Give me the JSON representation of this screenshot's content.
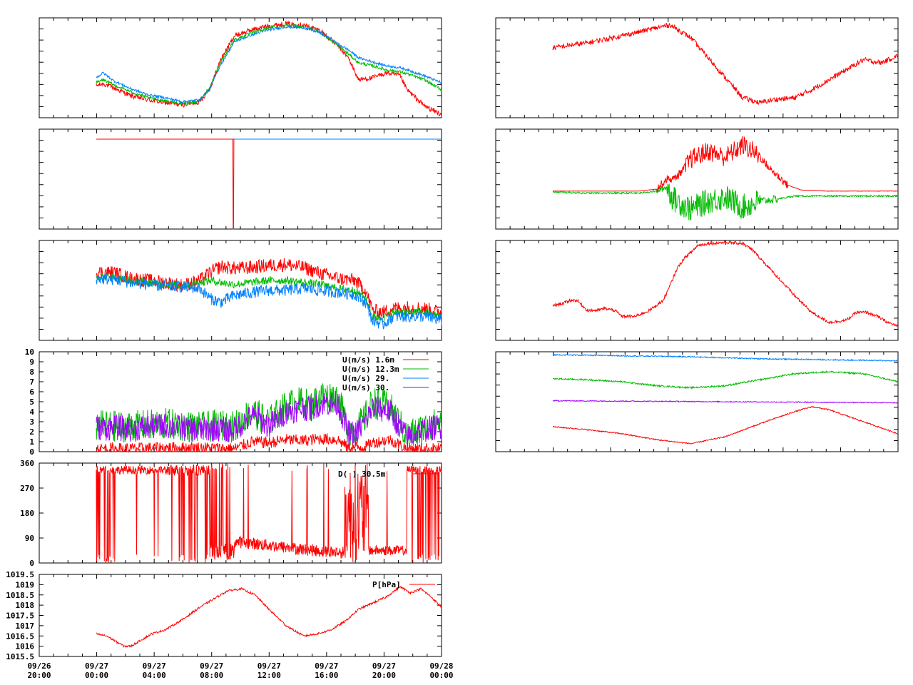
{
  "chart_data": [
    {
      "id": "left1",
      "type": "line",
      "series": [
        {
          "color": "#ff0000",
          "x": [
            0,
            0.02,
            0.05,
            0.1,
            0.15,
            0.2,
            0.25,
            0.3,
            0.33,
            0.36,
            0.4,
            0.45,
            0.5,
            0.55,
            0.6,
            0.65,
            0.7,
            0.73,
            0.76,
            0.8,
            0.84,
            0.88,
            0.9,
            0.95,
            1.0
          ],
          "y": [
            0.32,
            0.34,
            0.3,
            0.22,
            0.18,
            0.15,
            0.13,
            0.16,
            0.3,
            0.58,
            0.82,
            0.88,
            0.92,
            0.94,
            0.93,
            0.87,
            0.72,
            0.6,
            0.38,
            0.4,
            0.45,
            0.42,
            0.28,
            0.12,
            0.03
          ],
          "noise": 0.025
        },
        {
          "color": "#00bb00",
          "x": [
            0,
            0.02,
            0.05,
            0.1,
            0.15,
            0.2,
            0.25,
            0.3,
            0.33,
            0.36,
            0.4,
            0.45,
            0.5,
            0.55,
            0.6,
            0.65,
            0.7,
            0.73,
            0.76,
            0.8,
            0.84,
            0.88,
            0.9,
            0.95,
            1.0
          ],
          "y": [
            0.35,
            0.38,
            0.33,
            0.26,
            0.2,
            0.17,
            0.14,
            0.17,
            0.31,
            0.56,
            0.78,
            0.85,
            0.9,
            0.93,
            0.91,
            0.85,
            0.72,
            0.64,
            0.55,
            0.52,
            0.48,
            0.46,
            0.44,
            0.38,
            0.28
          ],
          "noise": 0.015
        },
        {
          "color": "#0080ff",
          "x": [
            0,
            0.02,
            0.05,
            0.1,
            0.15,
            0.2,
            0.25,
            0.3,
            0.33,
            0.36,
            0.4,
            0.45,
            0.5,
            0.55,
            0.6,
            0.65,
            0.7,
            0.73,
            0.76,
            0.8,
            0.84,
            0.88,
            0.9,
            0.95,
            1.0
          ],
          "y": [
            0.4,
            0.45,
            0.37,
            0.29,
            0.23,
            0.2,
            0.16,
            0.18,
            0.3,
            0.53,
            0.76,
            0.83,
            0.88,
            0.91,
            0.9,
            0.85,
            0.74,
            0.68,
            0.6,
            0.56,
            0.52,
            0.5,
            0.48,
            0.42,
            0.35
          ],
          "noise": 0.012
        }
      ]
    },
    {
      "id": "left2",
      "type": "line",
      "series": [
        {
          "color": "#0080ff",
          "x": [
            0,
            1
          ],
          "y": [
            0.9,
            0.9
          ],
          "noise": 0
        },
        {
          "color": "#ff0000",
          "x": [
            0,
            0.3955,
            0.3965,
            0.3975,
            0.3985,
            0.4
          ],
          "y": [
            0.9,
            0.9,
            0.0,
            0.0,
            0.9,
            0.9
          ],
          "noise": 0
        }
      ]
    },
    {
      "id": "left3",
      "type": "line",
      "series": [
        {
          "color": "#ff0000",
          "x": [
            0,
            0.05,
            0.1,
            0.15,
            0.2,
            0.25,
            0.3,
            0.33,
            0.36,
            0.4,
            0.45,
            0.5,
            0.55,
            0.6,
            0.65,
            0.7,
            0.75,
            0.78,
            0.8,
            0.83,
            0.86,
            0.9,
            0.95,
            1.0
          ],
          "y": [
            0.68,
            0.68,
            0.62,
            0.6,
            0.58,
            0.55,
            0.6,
            0.68,
            0.74,
            0.72,
            0.73,
            0.75,
            0.76,
            0.73,
            0.67,
            0.62,
            0.6,
            0.5,
            0.3,
            0.28,
            0.32,
            0.33,
            0.32,
            0.28
          ],
          "noise": 0.07
        },
        {
          "color": "#00bb00",
          "x": [
            0,
            0.05,
            0.1,
            0.15,
            0.2,
            0.25,
            0.3,
            0.33,
            0.36,
            0.4,
            0.45,
            0.5,
            0.55,
            0.6,
            0.65,
            0.7,
            0.75,
            0.78,
            0.8,
            0.83,
            0.86,
            0.9,
            0.95,
            1.0
          ],
          "y": [
            0.64,
            0.63,
            0.6,
            0.58,
            0.56,
            0.55,
            0.58,
            0.6,
            0.58,
            0.56,
            0.58,
            0.6,
            0.6,
            0.58,
            0.56,
            0.52,
            0.5,
            0.42,
            0.24,
            0.22,
            0.28,
            0.28,
            0.28,
            0.24
          ],
          "noise": 0.04
        },
        {
          "color": "#0080ff",
          "x": [
            0,
            0.05,
            0.1,
            0.15,
            0.2,
            0.25,
            0.3,
            0.33,
            0.36,
            0.4,
            0.45,
            0.5,
            0.55,
            0.6,
            0.65,
            0.7,
            0.75,
            0.78,
            0.8,
            0.83,
            0.86,
            0.9,
            0.95,
            1.0
          ],
          "y": [
            0.62,
            0.61,
            0.58,
            0.56,
            0.54,
            0.54,
            0.52,
            0.42,
            0.38,
            0.45,
            0.48,
            0.5,
            0.5,
            0.52,
            0.5,
            0.48,
            0.46,
            0.38,
            0.2,
            0.16,
            0.24,
            0.24,
            0.24,
            0.2
          ],
          "noise": 0.06
        }
      ]
    },
    {
      "id": "left4",
      "type": "line",
      "ylim": [
        0,
        10
      ],
      "yticks": [
        0,
        1,
        2,
        3,
        4,
        5,
        6,
        7,
        8,
        9,
        10
      ],
      "legend": [
        {
          "label": "U(m/s)  1.6m",
          "color": "#ff0000"
        },
        {
          "label": "U(m/s) 12.3m",
          "color": "#00bb00"
        },
        {
          "label": "U(m/s) 29.",
          "color": "#0080ff"
        },
        {
          "label": "U(m/s) 30.",
          "color": "#a000ff"
        }
      ],
      "series": [
        {
          "color": "#00bb00",
          "x": [
            0,
            0.1,
            0.2,
            0.3,
            0.35,
            0.4,
            0.45,
            0.5,
            0.55,
            0.6,
            0.62,
            0.65,
            0.7,
            0.73,
            0.75,
            0.78,
            0.8,
            0.85,
            0.9,
            0.95,
            1.0
          ],
          "y": [
            2.6,
            2.5,
            2.8,
            2.4,
            2.6,
            2.5,
            4.0,
            3.0,
            4.6,
            5.0,
            4.5,
            5.6,
            5.4,
            2.2,
            2.0,
            3.5,
            5.0,
            4.5,
            1.5,
            2.4,
            3.0
          ],
          "noise": 1.6
        },
        {
          "color": "#a000ff",
          "x": [
            0,
            0.1,
            0.2,
            0.3,
            0.35,
            0.4,
            0.45,
            0.5,
            0.55,
            0.6,
            0.62,
            0.65,
            0.7,
            0.73,
            0.75,
            0.78,
            0.8,
            0.85,
            0.9,
            0.95,
            1.0
          ],
          "y": [
            2.4,
            2.3,
            2.6,
            2.2,
            2.3,
            2.2,
            3.6,
            2.6,
            4.0,
            4.4,
            4.2,
            4.9,
            4.8,
            1.9,
            1.8,
            3.0,
            4.4,
            4.0,
            1.4,
            2.2,
            2.6
          ],
          "noise": 1.3
        },
        {
          "color": "#ff0000",
          "x": [
            0,
            0.1,
            0.2,
            0.3,
            0.4,
            0.45,
            0.5,
            0.55,
            0.6,
            0.65,
            0.7,
            0.73,
            0.78,
            0.8,
            0.85,
            0.9,
            0.95,
            1.0
          ],
          "y": [
            0.3,
            0.3,
            0.4,
            0.4,
            0.3,
            1.0,
            0.9,
            1.2,
            1.1,
            1.3,
            1.2,
            0.4,
            0.5,
            0.9,
            1.2,
            0.3,
            0.3,
            0.3
          ],
          "noise": 0.6
        }
      ]
    },
    {
      "id": "left5",
      "type": "line",
      "ylim": [
        0,
        360
      ],
      "yticks": [
        0,
        90,
        180,
        270,
        360
      ],
      "legend": [
        {
          "label": "D(   )  30.5m",
          "color": "#ff0000"
        }
      ],
      "series": [
        {
          "color": "#ff0000",
          "kind": "direction"
        }
      ]
    },
    {
      "id": "left6",
      "type": "line",
      "ylim": [
        1015.5,
        1019.5
      ],
      "yticks": [
        "1015.5",
        "1016",
        "1016.5",
        "1017",
        "1017.5",
        "1018",
        "1018.5",
        "1019",
        "1019.5"
      ],
      "legend": [
        {
          "label": "P[hPa]",
          "color": "#ff0000"
        }
      ],
      "x_ticks": [
        [
          "09/26",
          "20:00"
        ],
        [
          "09/27",
          "00:00"
        ],
        [
          "09/27",
          "04:00"
        ],
        [
          "09/27",
          "08:00"
        ],
        [
          "09/27",
          "12:00"
        ],
        [
          "09/27",
          "16:00"
        ],
        [
          "09/27",
          "20:00"
        ],
        [
          "09/28",
          "00:00"
        ]
      ],
      "series": [
        {
          "color": "#ff0000",
          "x": [
            0,
            0.03,
            0.06,
            0.08,
            0.1,
            0.13,
            0.16,
            0.2,
            0.25,
            0.3,
            0.34,
            0.38,
            0.42,
            0.46,
            0.5,
            0.55,
            0.6,
            0.64,
            0.68,
            0.72,
            0.76,
            0.8,
            0.84,
            0.88,
            0.91,
            0.94,
            0.97,
            1.0
          ],
          "y": [
            1016.6,
            1016.5,
            1016.2,
            1016.0,
            1016.0,
            1016.3,
            1016.6,
            1016.8,
            1017.3,
            1017.9,
            1018.3,
            1018.7,
            1018.8,
            1018.5,
            1017.8,
            1017.0,
            1016.5,
            1016.6,
            1016.8,
            1017.2,
            1017.8,
            1018.1,
            1018.4,
            1018.9,
            1018.6,
            1018.8,
            1018.4,
            1017.9
          ],
          "noise": 0.05
        }
      ]
    },
    {
      "id": "right1",
      "type": "line",
      "series": [
        {
          "color": "#ff0000",
          "x": [
            0,
            0.1,
            0.2,
            0.3,
            0.34,
            0.4,
            0.45,
            0.5,
            0.55,
            0.6,
            0.64,
            0.7,
            0.75,
            0.8,
            0.85,
            0.9,
            0.95,
            1.0
          ],
          "y": [
            0.7,
            0.75,
            0.82,
            0.9,
            0.93,
            0.8,
            0.6,
            0.4,
            0.2,
            0.15,
            0.18,
            0.2,
            0.28,
            0.38,
            0.48,
            0.58,
            0.55,
            0.62
          ],
          "noise": 0.025
        }
      ]
    },
    {
      "id": "right2",
      "type": "line",
      "series": [
        {
          "color": "#00bb00",
          "x": [
            0,
            0.1,
            0.2,
            0.25,
            0.3,
            0.33,
            0.35,
            0.4,
            0.45,
            0.5,
            0.55,
            0.6,
            0.65,
            0.7,
            0.8,
            0.9,
            1.0
          ],
          "y": [
            0.37,
            0.36,
            0.36,
            0.36,
            0.38,
            0.42,
            0.3,
            0.2,
            0.28,
            0.32,
            0.22,
            0.28,
            0.3,
            0.33,
            0.33,
            0.33,
            0.33
          ],
          "noise": 0.03,
          "noise_profile": [
            [
              0,
              0.3,
              0.008
            ],
            [
              0.3,
              0.33,
              0.03
            ],
            [
              0.33,
              0.6,
              0.13
            ],
            [
              0.6,
              0.65,
              0.04
            ],
            [
              0.65,
              1.0,
              0.008
            ]
          ]
        },
        {
          "color": "#ff0000",
          "x": [
            0,
            0.1,
            0.2,
            0.25,
            0.3,
            0.33,
            0.35,
            0.38,
            0.4,
            0.45,
            0.5,
            0.55,
            0.58,
            0.6,
            0.63,
            0.68,
            0.72,
            0.8,
            0.9,
            1.0
          ],
          "y": [
            0.38,
            0.38,
            0.38,
            0.38,
            0.4,
            0.5,
            0.5,
            0.6,
            0.7,
            0.78,
            0.72,
            0.84,
            0.78,
            0.72,
            0.6,
            0.44,
            0.39,
            0.38,
            0.38,
            0.38
          ],
          "noise": 0.03,
          "noise_profile": [
            [
              0,
              0.3,
              0.001
            ],
            [
              0.3,
              0.38,
              0.04
            ],
            [
              0.38,
              0.6,
              0.1
            ],
            [
              0.6,
              0.68,
              0.04
            ],
            [
              0.68,
              1.0,
              0.002
            ]
          ]
        }
      ]
    },
    {
      "id": "right3",
      "type": "line",
      "series": [
        {
          "color": "#ff0000",
          "x": [
            0,
            0.03,
            0.05,
            0.07,
            0.1,
            0.13,
            0.15,
            0.18,
            0.2,
            0.24,
            0.28,
            0.32,
            0.34,
            0.36,
            0.38,
            0.4,
            0.42,
            0.45,
            0.5,
            0.55,
            0.58,
            0.62,
            0.66,
            0.7,
            0.75,
            0.8,
            0.85,
            0.88,
            0.91,
            0.94,
            0.97,
            1.0
          ],
          "y": [
            0.35,
            0.37,
            0.4,
            0.4,
            0.3,
            0.3,
            0.32,
            0.3,
            0.24,
            0.24,
            0.3,
            0.4,
            0.55,
            0.72,
            0.82,
            0.88,
            0.95,
            0.97,
            0.98,
            0.97,
            0.9,
            0.75,
            0.6,
            0.45,
            0.28,
            0.18,
            0.2,
            0.28,
            0.28,
            0.24,
            0.18,
            0.14
          ],
          "noise": 0.015
        }
      ]
    },
    {
      "id": "right4",
      "type": "line",
      "series": [
        {
          "color": "#0080ff",
          "x": [
            0,
            0.2,
            0.4,
            0.6,
            0.8,
            1.0
          ],
          "y": [
            0.97,
            0.96,
            0.95,
            0.93,
            0.92,
            0.91
          ],
          "noise": 0.006
        },
        {
          "color": "#00bb00",
          "x": [
            0,
            0.1,
            0.2,
            0.3,
            0.4,
            0.5,
            0.6,
            0.7,
            0.8,
            0.9,
            1.0
          ],
          "y": [
            0.73,
            0.72,
            0.7,
            0.66,
            0.64,
            0.66,
            0.72,
            0.78,
            0.8,
            0.78,
            0.7
          ],
          "noise": 0.008
        },
        {
          "color": "#a000ff",
          "x": [
            0,
            0.5,
            1.0
          ],
          "y": [
            0.51,
            0.5,
            0.49
          ],
          "noise": 0.005
        },
        {
          "color": "#ff0000",
          "x": [
            0,
            0.1,
            0.2,
            0.3,
            0.4,
            0.5,
            0.6,
            0.7,
            0.75,
            0.8,
            0.9,
            1.0
          ],
          "y": [
            0.25,
            0.22,
            0.18,
            0.12,
            0.08,
            0.15,
            0.28,
            0.4,
            0.45,
            0.42,
            0.3,
            0.18
          ],
          "noise": 0.006
        }
      ]
    }
  ]
}
